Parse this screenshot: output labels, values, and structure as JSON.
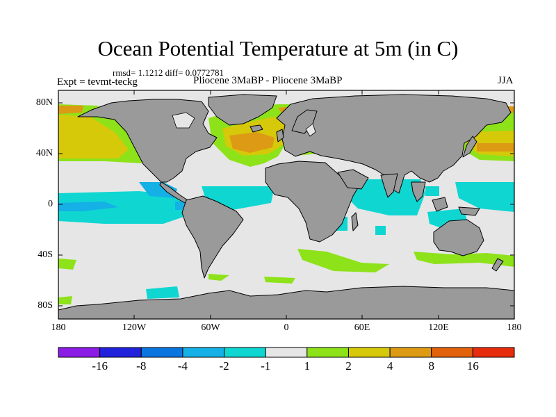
{
  "title": "Ocean Potential Temperature at 5m (in C)",
  "stats": "rmsd= 1.1212 diff= 0.0772781",
  "experiment": "Expt = tevmt-teckg",
  "comparison": "Pliocene   3MaBP - Pliocene   3MaBP",
  "season": "JJA",
  "latitude_labels": [
    "80N",
    "40N",
    "0",
    "40S",
    "80S"
  ],
  "longitude_labels": [
    "180",
    "120W",
    "60W",
    "0",
    "60E",
    "120E",
    "180"
  ],
  "colorbar": {
    "labels": [
      "-16",
      "-8",
      "-4",
      "-2",
      "-1",
      "1",
      "2",
      "4",
      "8",
      "16"
    ],
    "colors": [
      "#8a1ce6",
      "#2222dd",
      "#0a74df",
      "#14b0e6",
      "#10d6d2",
      "#e6e6e6",
      "#8ee21a",
      "#d6c90a",
      "#dd9a14",
      "#e2620c",
      "#e62c0c"
    ]
  },
  "colors": {
    "land": "#9a9a9a",
    "ocean_neutral": "#e6e6e6",
    "coastline": "#000000"
  }
}
